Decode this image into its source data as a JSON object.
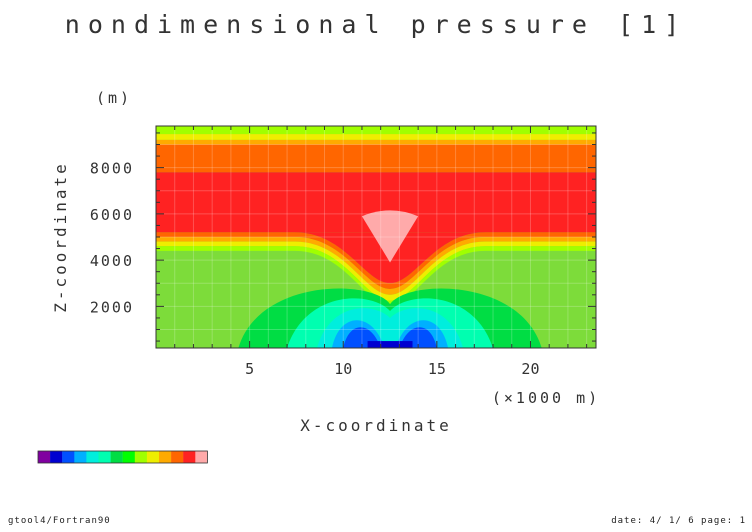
{
  "title": "nondimensional pressure [1]",
  "chart_data": {
    "type": "heatmap",
    "title": "nondimensional pressure [1]",
    "xlabel": "X-coordinate",
    "xunit": "(×1000 m)",
    "ylabel": "Z-coordinate",
    "yunit": "(m)",
    "xlim": [
      0,
      23.5
    ],
    "ylim": [
      200,
      9800
    ],
    "xticks": [
      5,
      10,
      15,
      20
    ],
    "yticks": [
      2000,
      4000,
      6000,
      8000
    ],
    "colorbar": [
      "#8000a0",
      "#0000d0",
      "#0050ff",
      "#00b0ff",
      "#00eedd",
      "#00ffb0",
      "#00dd44",
      "#00ff00",
      "#a0ff00",
      "#eeee00",
      "#ffaa00",
      "#ff6600",
      "#ff2222",
      "#ffaaaa"
    ],
    "bands": [
      {
        "level": "top",
        "color": "#a0ff00",
        "z": [
          9450,
          9800
        ]
      },
      {
        "level": "yellow",
        "color": "#eeee00",
        "z": [
          9200,
          9450
        ]
      },
      {
        "level": "orange",
        "color": "#ffaa00",
        "z": [
          9000,
          9200
        ]
      },
      {
        "level": "orange2",
        "color": "#ff6600",
        "z": [
          7800,
          9000
        ]
      },
      {
        "level": "red",
        "color": "#ff2222",
        "z": [
          5200,
          7800
        ]
      }
    ]
  },
  "footer": {
    "left": "gtool4/Fortran90",
    "right": "date: 4/ 1/ 6 page: 1"
  }
}
